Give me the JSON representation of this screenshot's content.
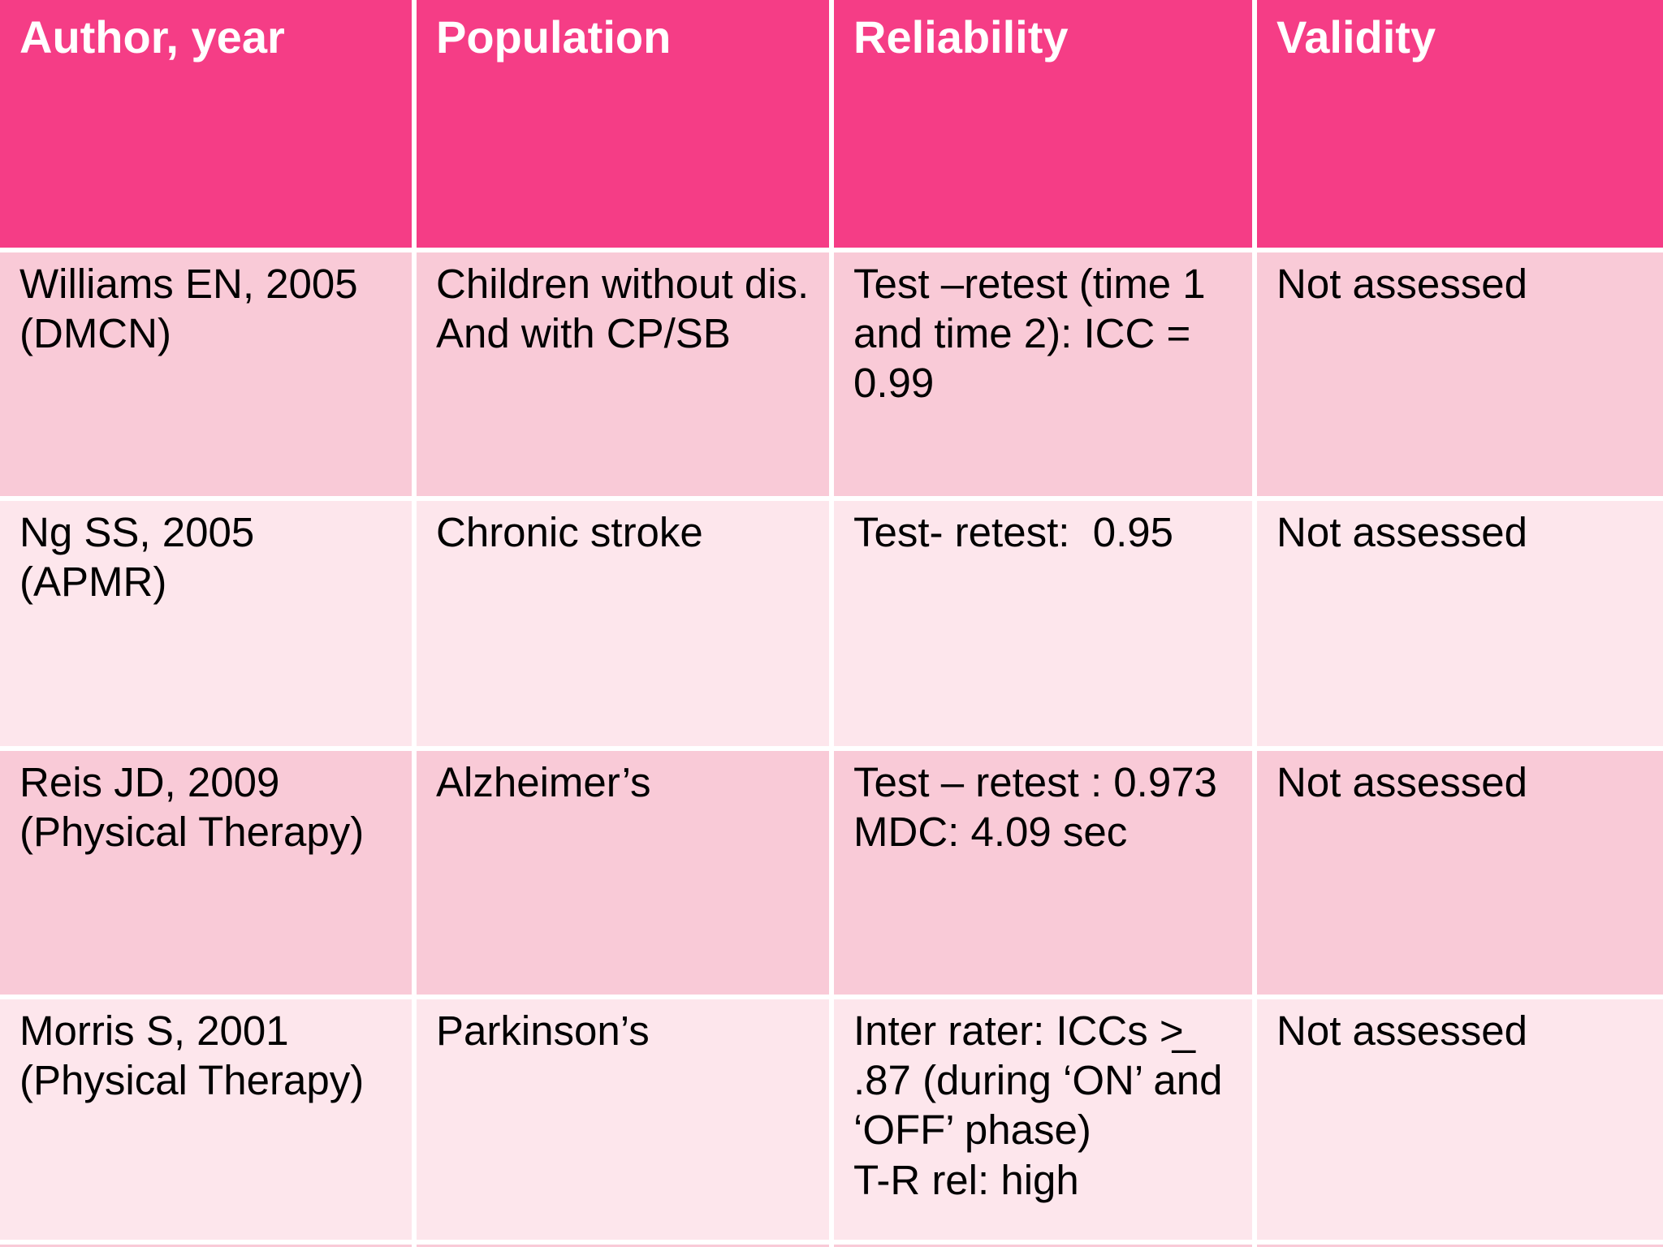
{
  "table": {
    "columns": [
      "Author, year",
      "Population",
      "Reliability",
      "Validity"
    ],
    "rows": [
      {
        "author": "Williams EN, 2005\n(DMCN)",
        "population": "Children without dis.\nAnd with CP/SB",
        "reliability": "Test –retest (time 1\nand time 2): ICC =\n0.99",
        "validity": "Not assessed"
      },
      {
        "author": "Ng SS, 2005\n(APMR)",
        "population": "Chronic stroke",
        "reliability": "Test- retest:  0.95",
        "validity": "Not assessed"
      },
      {
        "author": "Reis JD, 2009\n(Physical Therapy)",
        "population": "Alzheimer’s",
        "reliability": "Test – retest : 0.973\nMDC: 4.09 sec",
        "validity": "Not assessed"
      },
      {
        "author": "Morris S, 2001\n(Physical Therapy)",
        "population": "Parkinson’s",
        "reliability": "Inter rater: ICCs >̲\n.87 (during ‘ON’ and\n‘OFF’ phase)\nT-R rel: high",
        "validity": "Not assessed"
      }
    ],
    "colors": {
      "header_bg": "#f53d86",
      "header_text": "#ffffff",
      "row_odd_bg": "#f9cad7",
      "row_even_bg": "#fde6ec",
      "gridline": "#ffffff",
      "body_text": "#000000"
    }
  }
}
